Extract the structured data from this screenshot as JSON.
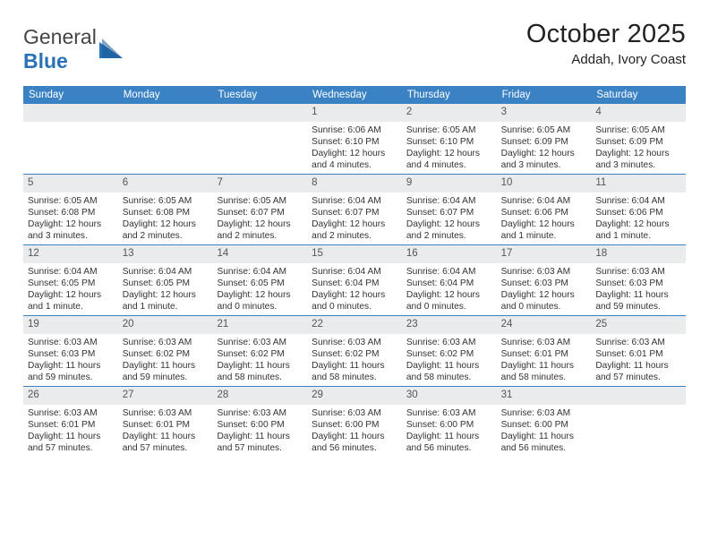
{
  "logo": {
    "text1": "General",
    "text2": "Blue"
  },
  "title": "October 2025",
  "location": "Addah, Ivory Coast",
  "colors": {
    "header_bg": "#3a82c4",
    "header_text": "#ffffff",
    "daynum_bg": "#e9ebec",
    "border": "#3a82c4",
    "logo_accent": "#2a72b5"
  },
  "weekdays": [
    "Sunday",
    "Monday",
    "Tuesday",
    "Wednesday",
    "Thursday",
    "Friday",
    "Saturday"
  ],
  "weeks": [
    [
      {
        "n": "",
        "sr": "",
        "ss": "",
        "d1": "",
        "d2": ""
      },
      {
        "n": "",
        "sr": "",
        "ss": "",
        "d1": "",
        "d2": ""
      },
      {
        "n": "",
        "sr": "",
        "ss": "",
        "d1": "",
        "d2": ""
      },
      {
        "n": "1",
        "sr": "Sunrise: 6:06 AM",
        "ss": "Sunset: 6:10 PM",
        "d1": "Daylight: 12 hours",
        "d2": "and 4 minutes."
      },
      {
        "n": "2",
        "sr": "Sunrise: 6:05 AM",
        "ss": "Sunset: 6:10 PM",
        "d1": "Daylight: 12 hours",
        "d2": "and 4 minutes."
      },
      {
        "n": "3",
        "sr": "Sunrise: 6:05 AM",
        "ss": "Sunset: 6:09 PM",
        "d1": "Daylight: 12 hours",
        "d2": "and 3 minutes."
      },
      {
        "n": "4",
        "sr": "Sunrise: 6:05 AM",
        "ss": "Sunset: 6:09 PM",
        "d1": "Daylight: 12 hours",
        "d2": "and 3 minutes."
      }
    ],
    [
      {
        "n": "5",
        "sr": "Sunrise: 6:05 AM",
        "ss": "Sunset: 6:08 PM",
        "d1": "Daylight: 12 hours",
        "d2": "and 3 minutes."
      },
      {
        "n": "6",
        "sr": "Sunrise: 6:05 AM",
        "ss": "Sunset: 6:08 PM",
        "d1": "Daylight: 12 hours",
        "d2": "and 2 minutes."
      },
      {
        "n": "7",
        "sr": "Sunrise: 6:05 AM",
        "ss": "Sunset: 6:07 PM",
        "d1": "Daylight: 12 hours",
        "d2": "and 2 minutes."
      },
      {
        "n": "8",
        "sr": "Sunrise: 6:04 AM",
        "ss": "Sunset: 6:07 PM",
        "d1": "Daylight: 12 hours",
        "d2": "and 2 minutes."
      },
      {
        "n": "9",
        "sr": "Sunrise: 6:04 AM",
        "ss": "Sunset: 6:07 PM",
        "d1": "Daylight: 12 hours",
        "d2": "and 2 minutes."
      },
      {
        "n": "10",
        "sr": "Sunrise: 6:04 AM",
        "ss": "Sunset: 6:06 PM",
        "d1": "Daylight: 12 hours",
        "d2": "and 1 minute."
      },
      {
        "n": "11",
        "sr": "Sunrise: 6:04 AM",
        "ss": "Sunset: 6:06 PM",
        "d1": "Daylight: 12 hours",
        "d2": "and 1 minute."
      }
    ],
    [
      {
        "n": "12",
        "sr": "Sunrise: 6:04 AM",
        "ss": "Sunset: 6:05 PM",
        "d1": "Daylight: 12 hours",
        "d2": "and 1 minute."
      },
      {
        "n": "13",
        "sr": "Sunrise: 6:04 AM",
        "ss": "Sunset: 6:05 PM",
        "d1": "Daylight: 12 hours",
        "d2": "and 1 minute."
      },
      {
        "n": "14",
        "sr": "Sunrise: 6:04 AM",
        "ss": "Sunset: 6:05 PM",
        "d1": "Daylight: 12 hours",
        "d2": "and 0 minutes."
      },
      {
        "n": "15",
        "sr": "Sunrise: 6:04 AM",
        "ss": "Sunset: 6:04 PM",
        "d1": "Daylight: 12 hours",
        "d2": "and 0 minutes."
      },
      {
        "n": "16",
        "sr": "Sunrise: 6:04 AM",
        "ss": "Sunset: 6:04 PM",
        "d1": "Daylight: 12 hours",
        "d2": "and 0 minutes."
      },
      {
        "n": "17",
        "sr": "Sunrise: 6:03 AM",
        "ss": "Sunset: 6:03 PM",
        "d1": "Daylight: 12 hours",
        "d2": "and 0 minutes."
      },
      {
        "n": "18",
        "sr": "Sunrise: 6:03 AM",
        "ss": "Sunset: 6:03 PM",
        "d1": "Daylight: 11 hours",
        "d2": "and 59 minutes."
      }
    ],
    [
      {
        "n": "19",
        "sr": "Sunrise: 6:03 AM",
        "ss": "Sunset: 6:03 PM",
        "d1": "Daylight: 11 hours",
        "d2": "and 59 minutes."
      },
      {
        "n": "20",
        "sr": "Sunrise: 6:03 AM",
        "ss": "Sunset: 6:02 PM",
        "d1": "Daylight: 11 hours",
        "d2": "and 59 minutes."
      },
      {
        "n": "21",
        "sr": "Sunrise: 6:03 AM",
        "ss": "Sunset: 6:02 PM",
        "d1": "Daylight: 11 hours",
        "d2": "and 58 minutes."
      },
      {
        "n": "22",
        "sr": "Sunrise: 6:03 AM",
        "ss": "Sunset: 6:02 PM",
        "d1": "Daylight: 11 hours",
        "d2": "and 58 minutes."
      },
      {
        "n": "23",
        "sr": "Sunrise: 6:03 AM",
        "ss": "Sunset: 6:02 PM",
        "d1": "Daylight: 11 hours",
        "d2": "and 58 minutes."
      },
      {
        "n": "24",
        "sr": "Sunrise: 6:03 AM",
        "ss": "Sunset: 6:01 PM",
        "d1": "Daylight: 11 hours",
        "d2": "and 58 minutes."
      },
      {
        "n": "25",
        "sr": "Sunrise: 6:03 AM",
        "ss": "Sunset: 6:01 PM",
        "d1": "Daylight: 11 hours",
        "d2": "and 57 minutes."
      }
    ],
    [
      {
        "n": "26",
        "sr": "Sunrise: 6:03 AM",
        "ss": "Sunset: 6:01 PM",
        "d1": "Daylight: 11 hours",
        "d2": "and 57 minutes."
      },
      {
        "n": "27",
        "sr": "Sunrise: 6:03 AM",
        "ss": "Sunset: 6:01 PM",
        "d1": "Daylight: 11 hours",
        "d2": "and 57 minutes."
      },
      {
        "n": "28",
        "sr": "Sunrise: 6:03 AM",
        "ss": "Sunset: 6:00 PM",
        "d1": "Daylight: 11 hours",
        "d2": "and 57 minutes."
      },
      {
        "n": "29",
        "sr": "Sunrise: 6:03 AM",
        "ss": "Sunset: 6:00 PM",
        "d1": "Daylight: 11 hours",
        "d2": "and 56 minutes."
      },
      {
        "n": "30",
        "sr": "Sunrise: 6:03 AM",
        "ss": "Sunset: 6:00 PM",
        "d1": "Daylight: 11 hours",
        "d2": "and 56 minutes."
      },
      {
        "n": "31",
        "sr": "Sunrise: 6:03 AM",
        "ss": "Sunset: 6:00 PM",
        "d1": "Daylight: 11 hours",
        "d2": "and 56 minutes."
      },
      {
        "n": "",
        "sr": "",
        "ss": "",
        "d1": "",
        "d2": ""
      }
    ]
  ]
}
